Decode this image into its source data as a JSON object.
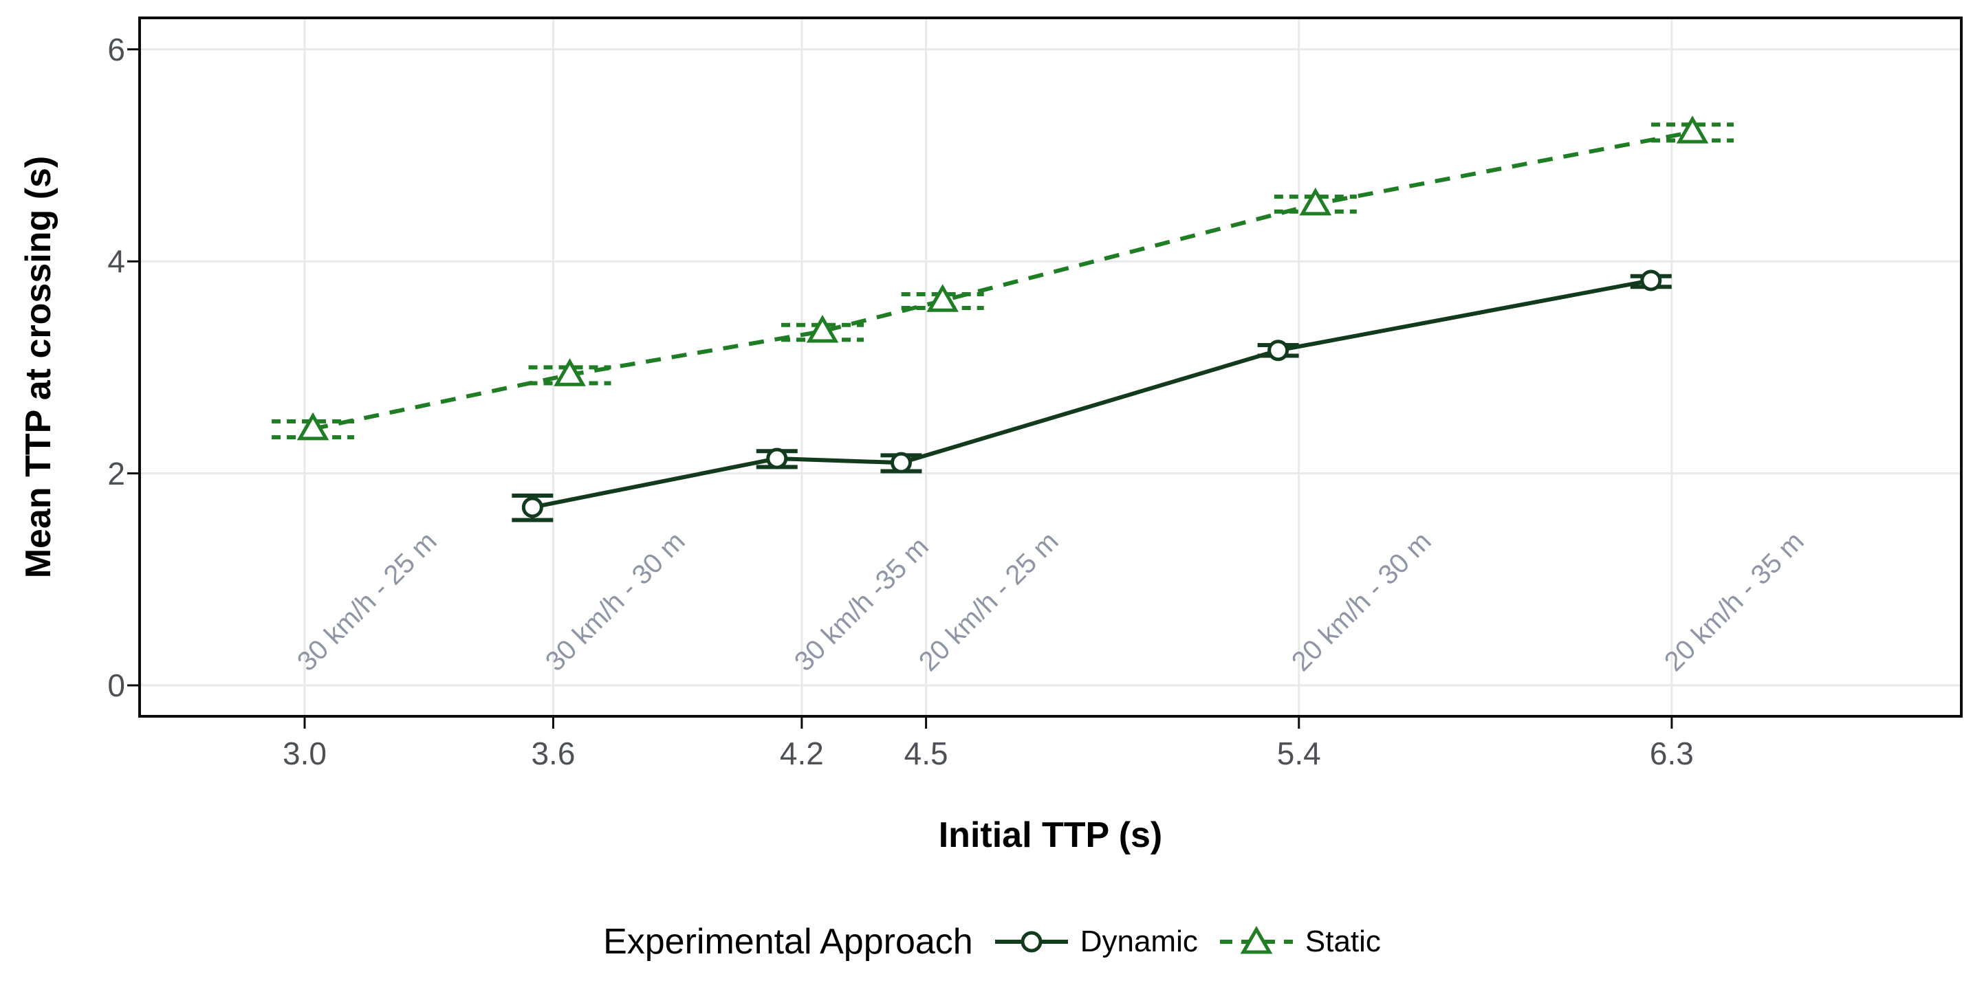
{
  "colors": {
    "dynamic_green": "#123b1d",
    "static_green": "#1f7d24",
    "tick_label_gray": "#4d5156",
    "annotation_gray": "#8e96a6",
    "grid_gray": "#e9e9e9",
    "axis_black": "#0c0c0c",
    "background": "#ffffff"
  },
  "chart_data": {
    "type": "line",
    "title": "",
    "xlabel": "Initial TTP (s)",
    "ylabel": "Mean TTP at crossing (s)",
    "legend_title": "Experimental Approach",
    "legend_position": "bottom",
    "grid": "major",
    "xlim": [
      2.6,
      7.0
    ],
    "ylim": [
      -0.3,
      6.35
    ],
    "x_ticks": [
      3.0,
      3.6,
      4.2,
      4.5,
      5.4,
      6.3
    ],
    "x_tick_labels": [
      "3.0",
      "3.6",
      "4.2",
      "4.5",
      "5.4",
      "6.3"
    ],
    "y_ticks": [
      0,
      2,
      4,
      6
    ],
    "y_tick_labels": [
      "0",
      "2",
      "4",
      "6"
    ],
    "series": [
      {
        "name": "Dynamic",
        "marker": "circle",
        "linetype": "solid",
        "color": "#123b1d",
        "points": [
          {
            "x": 3.55,
            "y": 1.68,
            "ylo": 1.56,
            "yhi": 1.79
          },
          {
            "x": 4.14,
            "y": 2.14,
            "ylo": 2.06,
            "yhi": 2.21
          },
          {
            "x": 4.44,
            "y": 2.1,
            "ylo": 2.02,
            "yhi": 2.17
          },
          {
            "x": 5.35,
            "y": 3.16,
            "ylo": 3.11,
            "yhi": 3.21
          },
          {
            "x": 6.25,
            "y": 3.82,
            "ylo": 3.76,
            "yhi": 3.86
          }
        ]
      },
      {
        "name": "Static",
        "marker": "triangle",
        "linetype": "dashed",
        "color": "#1f7d24",
        "points": [
          {
            "x": 3.02,
            "y": 2.42,
            "ylo": 2.34,
            "yhi": 2.49
          },
          {
            "x": 3.64,
            "y": 2.93,
            "ylo": 2.85,
            "yhi": 3.0
          },
          {
            "x": 4.25,
            "y": 3.34,
            "ylo": 3.26,
            "yhi": 3.4
          },
          {
            "x": 4.54,
            "y": 3.63,
            "ylo": 3.56,
            "yhi": 3.69
          },
          {
            "x": 5.44,
            "y": 4.54,
            "ylo": 4.47,
            "yhi": 4.61
          },
          {
            "x": 6.35,
            "y": 5.22,
            "ylo": 5.14,
            "yhi": 5.29
          }
        ]
      }
    ],
    "annotations": [
      {
        "text": "30 km/h - 25 m",
        "x": 3.0
      },
      {
        "text": "30 km/h - 30 m",
        "x": 3.6
      },
      {
        "text": "30 km/h -35 m",
        "x": 4.2
      },
      {
        "text": "20 km/h - 25 m",
        "x": 4.5
      },
      {
        "text": "20 km/h - 30 m",
        "x": 5.4
      },
      {
        "text": "20 km/h - 35 m",
        "x": 6.3
      }
    ]
  }
}
